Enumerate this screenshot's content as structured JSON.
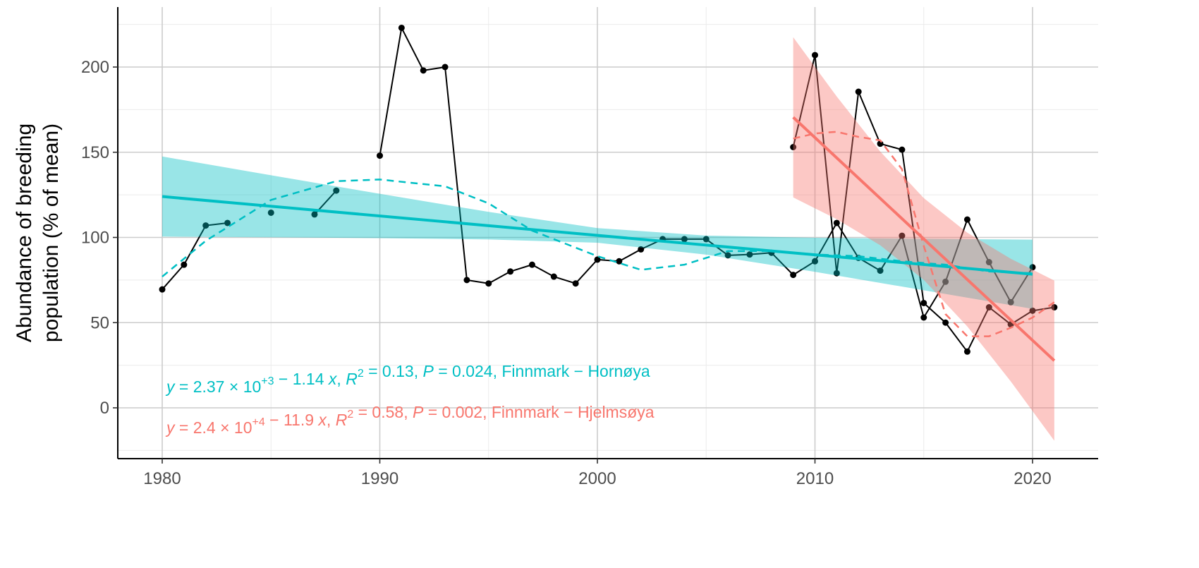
{
  "chart_data": {
    "type": "line",
    "xlabel": "",
    "ylabel": [
      "Abundance of breeding",
      "population (% of mean)"
    ],
    "xlim": [
      1978,
      2023
    ],
    "ylim": [
      -29,
      235
    ],
    "x_ticks": [
      1980,
      1990,
      2000,
      2010,
      2020
    ],
    "y_ticks": [
      0,
      50,
      100,
      150,
      200
    ],
    "grid": true,
    "colors": {
      "hornoya": "#00BFC4",
      "hjelmsoya": "#F8766D",
      "observed": "#000000"
    },
    "series": [
      {
        "name": "Finnmark – Hornøya",
        "color": "#00BFC4",
        "years": [
          1980,
          1981,
          1982,
          1983,
          1984,
          1985,
          1986,
          1987,
          1988,
          1989,
          1990,
          1991,
          1992,
          1993,
          1994,
          1995,
          1996,
          1997,
          1998,
          1999,
          2000,
          2001,
          2002,
          2003,
          2004,
          2005,
          2006,
          2007,
          2008,
          2009,
          2010,
          2011,
          2012,
          2013,
          2014,
          2015,
          2016,
          2017,
          2018,
          2019,
          2020
        ],
        "values": [
          69.5,
          84,
          107,
          108.5,
          null,
          114.5,
          null,
          113.5,
          127.5,
          null,
          148,
          223,
          198,
          200,
          75,
          73,
          80,
          84,
          77,
          73,
          87,
          86,
          93,
          99,
          99,
          99,
          89.5,
          90,
          91,
          78,
          86,
          108.5,
          88,
          80.5,
          101,
          53,
          74,
          110.5,
          85.5,
          62,
          82.5
        ],
        "linear_fit": {
          "x": [
            1980,
            2020
          ],
          "y": [
            124,
            78.4
          ]
        },
        "ci_band": {
          "x": [
            1980,
            1985,
            1990,
            1995,
            2000,
            2005,
            2010,
            2015,
            2020
          ],
          "lower": [
            100.5,
            100.1,
            99.6,
            98.8,
            96.9,
            89.9,
            79.8,
            69,
            58.1
          ],
          "upper": [
            147.5,
            136.5,
            125.6,
            115,
            105.5,
            101.1,
            99.8,
            99.2,
            98.7
          ]
        },
        "smooth": {
          "x": [
            1980,
            1982,
            1985,
            1988,
            1990,
            1993,
            1995,
            1997,
            2000,
            2002,
            2004,
            2006,
            2008,
            2010,
            2012,
            2014,
            2016,
            2018,
            2020
          ],
          "y": [
            77,
            98,
            122,
            133,
            134,
            130,
            120,
            104,
            89,
            81,
            84,
            92,
            92,
            90,
            89,
            86,
            84,
            80,
            79
          ]
        },
        "equation": [
          {
            "t": "y",
            "i": true
          },
          {
            "t": " = 2.37 × 10"
          },
          {
            "t": "+3",
            "sup": true
          },
          {
            "t": " − 1.14 "
          },
          {
            "t": "x",
            "i": true
          },
          {
            "t": ", "
          },
          {
            "t": "R",
            "i": true
          },
          {
            "t": "2",
            "sup": true
          },
          {
            "t": " = 0.13, "
          },
          {
            "t": "P",
            "i": true
          },
          {
            "t": " = 0.024, Finnmark − Hornøya"
          }
        ]
      },
      {
        "name": "Finnmark – Hjelmsøya",
        "color": "#F8766D",
        "years": [
          2009,
          2010,
          2011,
          2012,
          2013,
          2014,
          2015,
          2016,
          2017,
          2018,
          2019,
          2020,
          2021
        ],
        "values": [
          153,
          207,
          79,
          185.5,
          155,
          151.5,
          61.5,
          50,
          33,
          59,
          49,
          57,
          59
        ],
        "linear_fit": {
          "x": [
            2009,
            2021
          ],
          "y": [
            170.5,
            27.7
          ]
        },
        "ci_band": {
          "x": [
            2009,
            2011,
            2013,
            2015,
            2017,
            2019,
            2021
          ],
          "lower": [
            123.5,
            110.7,
            95.4,
            75.1,
            47.8,
            15.5,
            -19.3
          ],
          "upper": [
            217.5,
            182.7,
            150.4,
            123.1,
            102.8,
            87.5,
            74.7
          ]
        },
        "smooth": {
          "x": [
            2009,
            2010,
            2011,
            2012,
            2013,
            2014,
            2015,
            2016,
            2017,
            2018,
            2019,
            2020,
            2021
          ],
          "y": [
            158,
            161,
            162,
            159,
            157,
            140,
            95,
            55,
            42,
            42,
            47,
            53,
            62
          ]
        },
        "equation": [
          {
            "t": "y",
            "i": true
          },
          {
            "t": " = 2.4 × 10"
          },
          {
            "t": "+4",
            "sup": true
          },
          {
            "t": " − 11.9 "
          },
          {
            "t": "x",
            "i": true
          },
          {
            "t": ", "
          },
          {
            "t": "R",
            "i": true
          },
          {
            "t": "2",
            "sup": true
          },
          {
            "t": " = 0.58, "
          },
          {
            "t": "P",
            "i": true
          },
          {
            "t": " = 0.002, Finnmark − Hjelmsøya"
          }
        ]
      }
    ]
  }
}
